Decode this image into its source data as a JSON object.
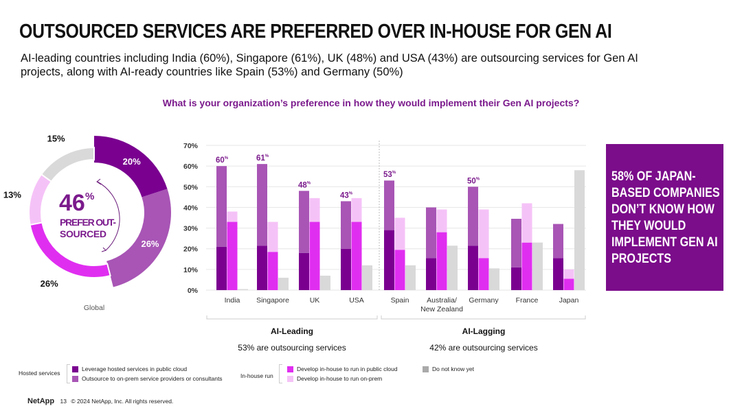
{
  "title": "OUTSOURCED SERVICES ARE PREFERRED OVER IN-HOUSE FOR GEN AI",
  "subtitle": "AI-leading countries including India (60%), Singapore (61%), UK (48%) and USA (43%) are outsourcing services for Gen AI projects, along with AI-ready countries like Spain (53%) and Germany (50%)",
  "question": "What is your organization’s preference in how they would implement their Gen AI projects?",
  "colors": {
    "leverage": "#7a0090",
    "outsource": "#a855b5",
    "inhouse_cloud": "#e02ef0",
    "inhouse_onprem": "#f5c2f7",
    "dont_know": "#d9d9d9",
    "accent": "#7b1a8c"
  },
  "chart_data": [
    {
      "type": "pie",
      "title": "Global",
      "center_big": "46",
      "center_pct": "%",
      "center_label": "PREFER OUT-SOURCED",
      "center_line1": "PREFER OUT-",
      "center_line2": "SOURCED",
      "slices": [
        {
          "key": "leverage",
          "value": 20,
          "label": "20%"
        },
        {
          "key": "outsource",
          "value": 26,
          "label": "26%"
        },
        {
          "key": "inhouse_cloud",
          "value": 26,
          "label": "26%"
        },
        {
          "key": "inhouse_onprem",
          "value": 13,
          "label": "13%"
        },
        {
          "key": "dont_know",
          "value": 15,
          "label": "15%"
        }
      ]
    },
    {
      "type": "bar",
      "ylim": [
        0,
        70
      ],
      "yticks": [
        "0%",
        "10%",
        "20%",
        "30%",
        "40%",
        "50%",
        "60%",
        "70%"
      ],
      "grid": true,
      "categories": [
        "India",
        "Singapore",
        "UK",
        "USA",
        "Spain",
        "Australia/ New Zealand",
        "Germany",
        "France",
        "Japan"
      ],
      "category_lines": [
        [
          "India"
        ],
        [
          "Singapore"
        ],
        [
          "UK"
        ],
        [
          "USA"
        ],
        [
          "Spain"
        ],
        [
          "Australia/",
          "New Zealand"
        ],
        [
          "Germany"
        ],
        [
          "France"
        ],
        [
          "Japan"
        ]
      ],
      "series": [
        {
          "name": "Leverage hosted services in public cloud",
          "key": "leverage",
          "stack": "hosted",
          "values": [
            21,
            21.5,
            18,
            20,
            29,
            15.5,
            21.5,
            11,
            15.5
          ]
        },
        {
          "name": "Outsource to on-prem service providers or consultants",
          "key": "outsource",
          "stack": "hosted",
          "values": [
            39,
            39.5,
            30,
            23,
            24,
            24.5,
            28.5,
            23.5,
            16.5
          ]
        },
        {
          "name": "Develop in-house to run in public cloud",
          "key": "inhouse_cloud",
          "stack": "inhouse",
          "values": [
            33,
            18.5,
            33,
            33,
            19.5,
            28,
            15.5,
            23,
            5.5
          ]
        },
        {
          "name": "Develop in-house to run on-prem",
          "key": "inhouse_onprem",
          "stack": "inhouse",
          "values": [
            5,
            14.5,
            11.5,
            11.5,
            15.5,
            11,
            23.5,
            19,
            4.5
          ]
        },
        {
          "name": "Do not know yet",
          "key": "dont_know",
          "stack": "dk",
          "values": [
            0.5,
            6,
            7,
            12,
            12,
            21.5,
            10.5,
            23,
            58
          ]
        }
      ],
      "annotations": [
        {
          "category": "India",
          "text": "60",
          "sup": "%"
        },
        {
          "category": "Singapore",
          "text": "61",
          "sup": "%"
        },
        {
          "category": "UK",
          "text": "48",
          "sup": "%"
        },
        {
          "category": "USA",
          "text": "43",
          "sup": "%"
        },
        {
          "category": "Spain",
          "text": "53",
          "sup": "%"
        },
        {
          "category": "Germany",
          "text": "50",
          "sup": "%"
        }
      ],
      "groups": [
        {
          "name": "AI-Leading",
          "note": "53% are outsourcing services"
        },
        {
          "name": "AI-Lagging",
          "note": "42% are outsourcing services"
        }
      ]
    }
  ],
  "callout": "58% OF JAPAN-BASED COMPANIES DON’T KNOW HOW THEY WOULD IMPLEMENT GEN AI PROJECTS",
  "legend": {
    "hosted_label": "Hosted services",
    "inhouse_label": "In-house run",
    "leverage": "Leverage hosted services in public cloud",
    "outsource": "Outsource to on-prem service providers or consultants",
    "inhouse_cloud": "Develop in-house to run in public cloud",
    "inhouse_onprem": "Develop in-house to run on-prem",
    "dont_know": "Do not know yet"
  },
  "footer": {
    "logo": "NetApp",
    "page": "13",
    "copyright": "© 2024 NetApp, Inc. All rights reserved."
  }
}
